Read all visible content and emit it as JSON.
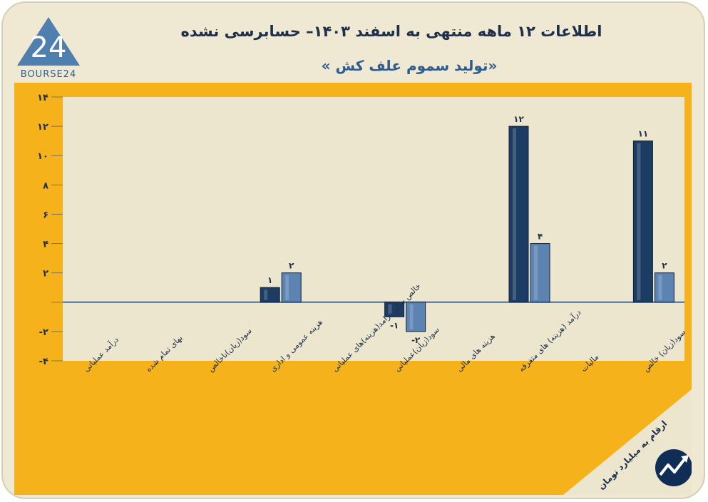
{
  "brand": {
    "logo_number": "24",
    "logo_text": "BOURSE24"
  },
  "header": {
    "title": "اطلاعات ۱۲ ماهه منتهی به اسفند ۱۴۰۳– حسابرسی نشده",
    "subtitle": "«تولید سموم علف کش »"
  },
  "footer": {
    "unit_note": "ارقام به میلیارد تومان"
  },
  "colors": {
    "series_prev": "#1d3c64",
    "series_curr": "#5d83b3",
    "panel": "#f5b21b",
    "plot_bg": "#ece6ce",
    "axis_line": "#4a6e94"
  },
  "chart_data": {
    "type": "bar",
    "categories": [
      "درآمد عملیاتی",
      "بهای تمام شده",
      "سود(زیان)ناخالص",
      "هزینه عمومی و اداری",
      "خالص سایر درامد(هزینه)های عملیاتی",
      "سود(زیان)عملیاتی",
      "هزینه های مالی",
      "درآمد (هزینه) های متفرقه",
      "مالیات",
      "سود(زیان) خالص"
    ],
    "series": [
      {
        "values": [
          null,
          null,
          null,
          1,
          null,
          -1,
          null,
          12,
          null,
          11
        ],
        "labels": [
          "",
          "",
          "",
          "۱",
          "",
          "-۱",
          "",
          "۱۲",
          "",
          "۱۱"
        ]
      },
      {
        "values": [
          null,
          null,
          null,
          2,
          null,
          -2,
          null,
          4,
          null,
          2
        ],
        "labels": [
          "",
          "",
          "",
          "۲",
          "",
          "-۲",
          "",
          "۴",
          "",
          "۲"
        ]
      }
    ],
    "ylim": [
      -4,
      14
    ],
    "yticks": [
      14,
      12,
      10,
      8,
      6,
      4,
      2,
      0,
      -2,
      -4
    ],
    "ytick_labels": [
      "۱۴",
      "۱۲",
      "۱۰",
      "۸",
      "۶",
      "۴",
      "۲",
      "",
      "-۲",
      "-۴"
    ],
    "grid": true,
    "title": "اطلاعات ۱۲ ماهه منتهی به اسفند ۱۴۰۳– حسابرسی نشده",
    "xlabel": "",
    "ylabel": ""
  }
}
